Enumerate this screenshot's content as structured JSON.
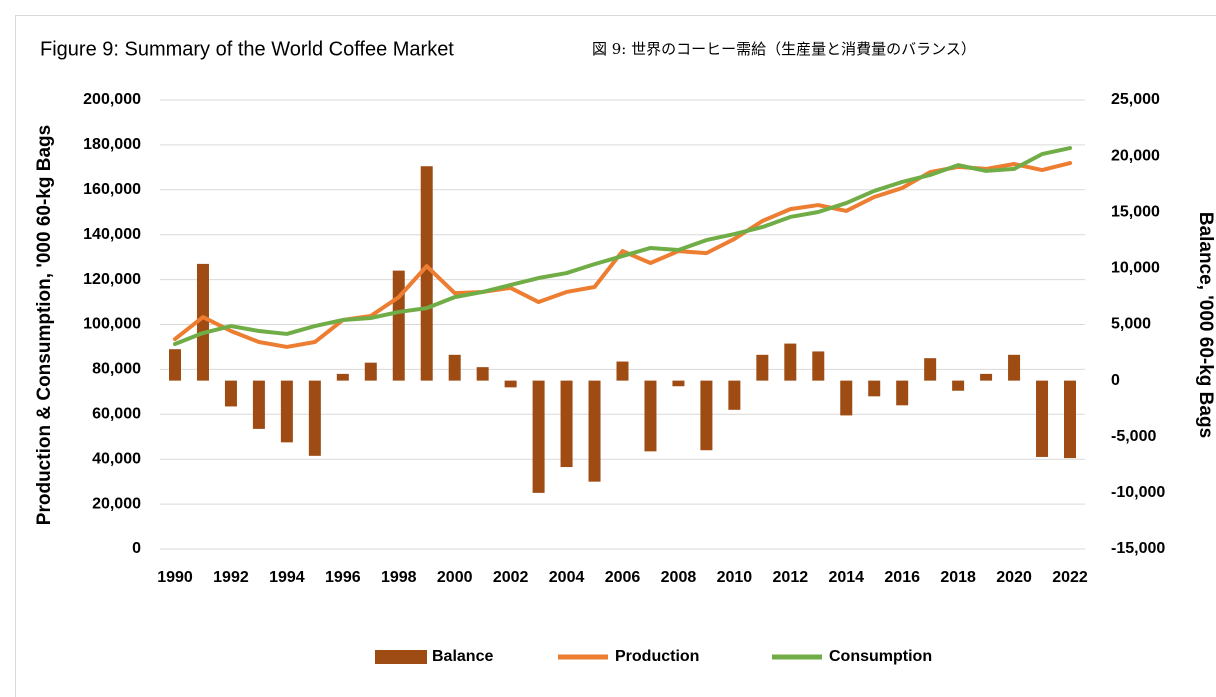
{
  "chart_data": {
    "type": "combo",
    "title": "Figure 9: Summary of the World Coffee Market",
    "subtitle": "図 9: 世界のコーヒー需給（生産量と消費量のバランス）",
    "y_label": "Production & Consumption, '000 60-kg Bags",
    "y2_label": "Balance, '000 60-kg Bags",
    "x": [
      1990,
      1991,
      1992,
      1993,
      1994,
      1995,
      1996,
      1997,
      1998,
      1999,
      2000,
      2001,
      2002,
      2003,
      2004,
      2005,
      2006,
      2007,
      2008,
      2009,
      2010,
      2011,
      2012,
      2013,
      2014,
      2015,
      2016,
      2017,
      2018,
      2019,
      2020,
      2021,
      2022
    ],
    "xticks": [
      1990,
      1992,
      1994,
      1996,
      1998,
      2000,
      2002,
      2004,
      2006,
      2008,
      2010,
      2012,
      2014,
      2016,
      2018,
      2020,
      2022
    ],
    "ylim": [
      0,
      200000
    ],
    "yticks": [
      0,
      {
        "value": 20000,
        "label": "20,000"
      },
      {
        "value": 40000,
        "label": "40,000"
      },
      {
        "value": 60000,
        "label": "60,000"
      },
      {
        "value": 80000,
        "label": "80,000"
      },
      {
        "value": 100000,
        "label": "100,000"
      },
      {
        "value": 120000,
        "label": "120,000"
      },
      {
        "value": 140000,
        "label": "140,000"
      },
      {
        "value": 160000,
        "label": "160,000"
      },
      {
        "value": 180000,
        "label": "180,000"
      },
      {
        "value": 200000,
        "label": "200,000"
      }
    ],
    "y2lim": [
      -15000,
      25000
    ],
    "y2ticks": [
      {
        "value": -15000,
        "label": "-15,000"
      },
      {
        "value": -10000,
        "label": "-10,000"
      },
      {
        "value": -5000,
        "label": "-5,000"
      },
      0,
      {
        "value": 5000,
        "label": "5,000"
      },
      {
        "value": 10000,
        "label": "10,000"
      },
      {
        "value": 15000,
        "label": "15,000"
      },
      {
        "value": 20000,
        "label": "20,000"
      },
      {
        "value": 25000,
        "label": "25,000"
      }
    ],
    "grid": true,
    "legend": "bottom",
    "series": [
      {
        "name": "Balance",
        "type": "bar",
        "axis": "y2",
        "color": "#9e4c14",
        "values": [
          2800,
          10400,
          -2300,
          -4300,
          -5500,
          -6700,
          600,
          1600,
          9800,
          19100,
          2300,
          1200,
          -600,
          -10000,
          -7700,
          -9000,
          1700,
          -6300,
          -500,
          -6200,
          -2600,
          2300,
          3300,
          2600,
          -3100,
          -1400,
          -2200,
          2000,
          -900,
          600,
          2300,
          -6800,
          -6900
        ]
      },
      {
        "name": "Production",
        "type": "line",
        "color": "#ed7d31",
        "values": [
          93500,
          103300,
          97100,
          92200,
          90000,
          92200,
          102000,
          103800,
          112200,
          126000,
          114000,
          114500,
          116300,
          110000,
          114500,
          116700,
          132700,
          127400,
          132700,
          131800,
          138100,
          146100,
          151400,
          153200,
          150600,
          156800,
          160800,
          167900,
          170200,
          169300,
          171500,
          168800,
          171900
        ]
      },
      {
        "name": "Consumption",
        "type": "line",
        "color": "#70ad47",
        "values": [
          91300,
          96200,
          99300,
          97100,
          95800,
          99300,
          102000,
          102900,
          105600,
          107300,
          112200,
          114500,
          117600,
          120700,
          122900,
          126900,
          130500,
          134100,
          133200,
          137600,
          140300,
          143400,
          147900,
          150100,
          154100,
          159500,
          163500,
          166600,
          171000,
          168400,
          169300,
          175900,
          178600
        ]
      }
    ]
  }
}
